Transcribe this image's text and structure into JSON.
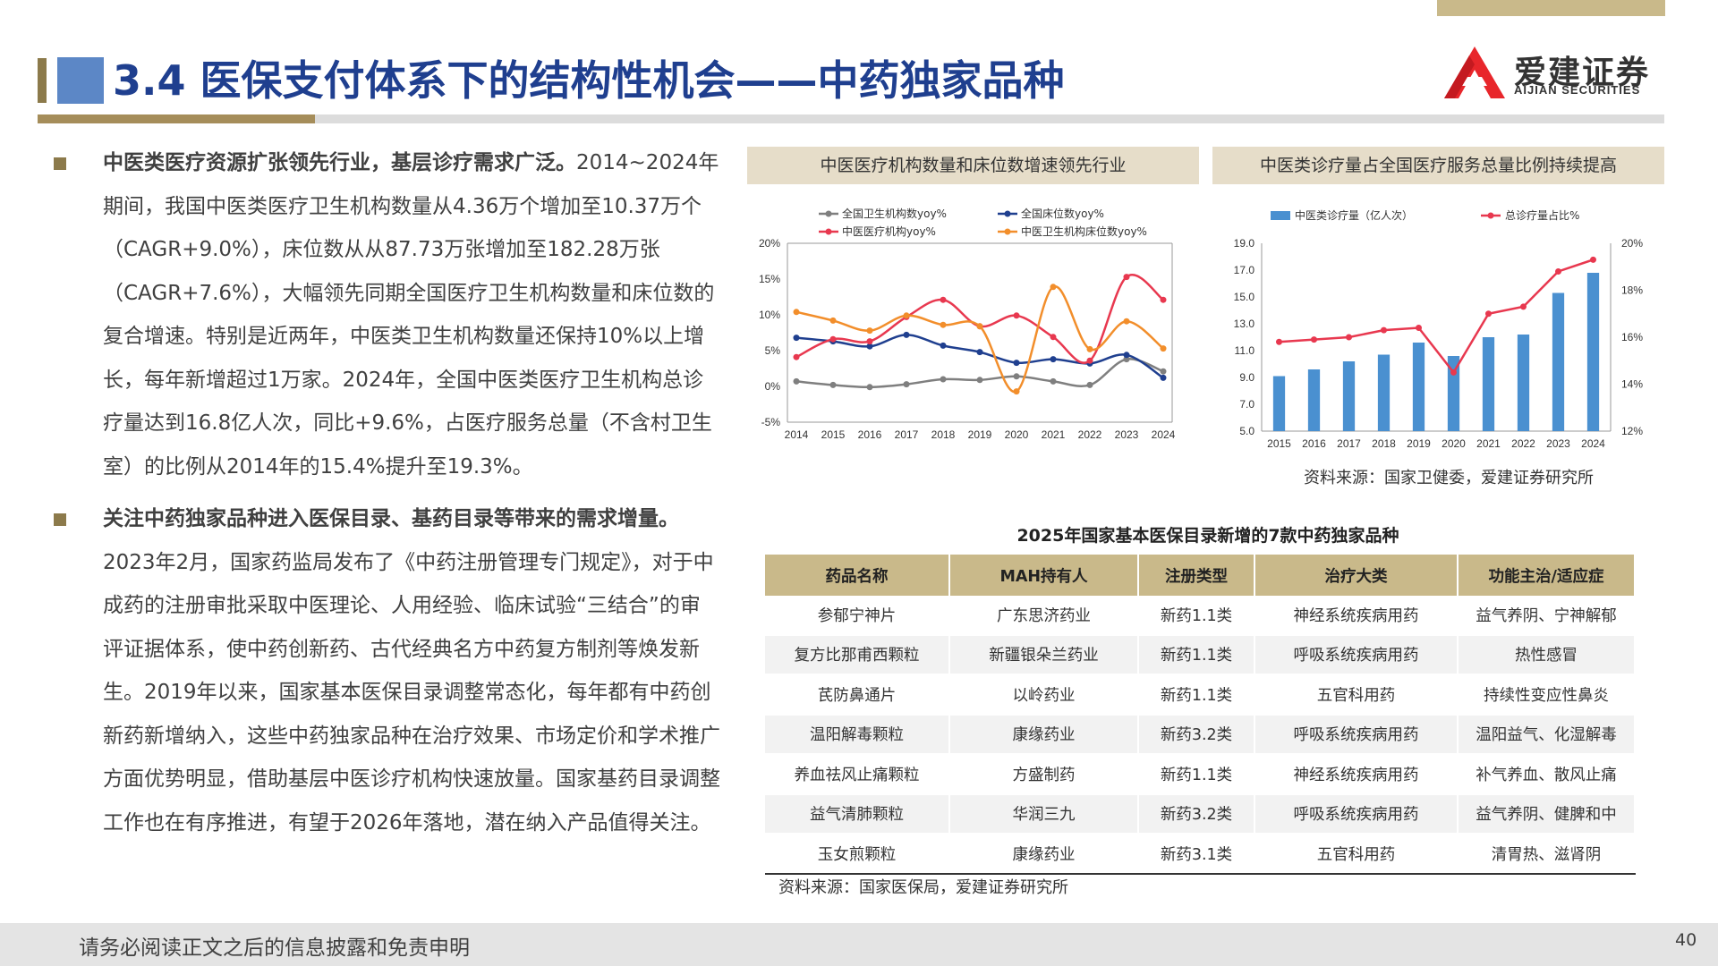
{
  "header": {
    "title": "3.4 医保支付体系下的结构性机会——中药独家品种",
    "logo_cn": "爱建证券",
    "logo_en": "AIJIAN SECURITIES"
  },
  "body": {
    "p1_bold": "中医类医疗资源扩张领先行业，基层诊疗需求广泛。",
    "p1_text": "2014~2024年期间，我国中医类医疗卫生机构数量从4.36万个增加至10.37万个（CAGR+9.0%），床位数从从87.73万张增加至182.28万张（CAGR+7.6%），大幅领先同期全国医疗卫生机构数量和床位数的复合增速。特别是近两年，中医类卫生机构数量还保持10%以上增长，每年新增超过1万家。2024年，全国中医类医疗卫生机构总诊疗量达到16.8亿人次，同比+9.6%，占医疗服务总量（不含村卫生室）的比例从2014年的15.4%提升至19.3%。",
    "p2_bold": "关注中药独家品种进入医保目录、基药目录等带来的需求增量。",
    "p2_text": "2023年2月，国家药监局发布了《中药注册管理专门规定》，对于中成药的注册审批采取中医理论、人用经验、临床试验“三结合”的审评证据体系，使中药创新药、古代经典名方中药复方制剂等焕发新生。2019年以来，国家基本医保目录调整常态化，每年都有中药创新药新增纳入，这些中药独家品种在治疗效果、市场定价和学术推广方面优势明显，借助基层中医诊疗机构快速放量。国家基药目录调整工作也在有序推进，有望于2026年落地，潜在纳入产品值得关注。"
  },
  "chart_data": [
    {
      "type": "line",
      "title": "中医医疗机构数量和床位数增速领先行业",
      "x": [
        "2014",
        "2015",
        "2016",
        "2017",
        "2018",
        "2019",
        "2020",
        "2021",
        "2022",
        "2023",
        "2024"
      ],
      "ylim": [
        -5,
        20
      ],
      "yticks": [
        "20%",
        "15%",
        "10%",
        "5%",
        "0%",
        "-5%"
      ],
      "series": [
        {
          "name": "全国卫生机构数yoy%",
          "color": "#7f7f7f",
          "values": [
            0.7,
            0.2,
            -0.1,
            0.3,
            1.0,
            0.9,
            1.4,
            0.7,
            0.2,
            3.8,
            2.1
          ]
        },
        {
          "name": "全国床位数yoy%",
          "color": "#1f3f8f",
          "values": [
            6.8,
            6.3,
            5.6,
            7.2,
            5.7,
            4.8,
            3.3,
            3.8,
            3.2,
            4.4,
            1.2
          ]
        },
        {
          "name": "中医医疗机构yoy%",
          "color": "#e8384f",
          "values": [
            4.1,
            6.6,
            6.3,
            9.7,
            12.1,
            8.4,
            9.9,
            6.9,
            3.6,
            15.3,
            12.1
          ]
        },
        {
          "name": "中医卫生机构床位数yoy%",
          "color": "#f28e2b",
          "values": [
            10.4,
            9.2,
            7.8,
            9.9,
            8.6,
            8.4,
            -0.7,
            13.9,
            5.2,
            9.1,
            5.3
          ]
        }
      ]
    },
    {
      "type": "bar",
      "title": "中医类诊疗量占全国医疗服务总量比例持续提高",
      "categories": [
        "2015",
        "2016",
        "2017",
        "2018",
        "2019",
        "2020",
        "2021",
        "2022",
        "2023",
        "2024"
      ],
      "ylim": [
        5,
        19
      ],
      "yticks": [
        "19.0",
        "17.0",
        "15.0",
        "13.0",
        "11.0",
        "9.0",
        "7.0",
        "5.0"
      ],
      "y2lim": [
        12,
        20
      ],
      "y2ticks": [
        "20%",
        "18%",
        "16%",
        "14%",
        "12%"
      ],
      "series": [
        {
          "name": "中医类诊疗量（亿人次）",
          "color": "#4a90d0",
          "kind": "bar",
          "values": [
            9.1,
            9.6,
            10.2,
            10.7,
            11.6,
            10.6,
            12.0,
            12.2,
            15.3,
            16.8
          ]
        },
        {
          "name": "总诊疗量占比%",
          "color": "#e8384f",
          "kind": "line",
          "values": [
            15.8,
            15.9,
            16.0,
            16.3,
            16.4,
            14.5,
            17.0,
            17.3,
            18.8,
            19.3
          ]
        }
      ]
    }
  ],
  "sources": {
    "charts": "资料来源：国家卫健委，爱建证券研究所",
    "table": "资料来源：国家医保局，爱建证券研究所"
  },
  "table": {
    "title": "2025年国家基本医保目录新增的7款中药独家品种",
    "headers": [
      "药品名称",
      "MAH持有人",
      "注册类型",
      "治疗大类",
      "功能主治/适应症"
    ],
    "rows": [
      [
        "参郁宁神片",
        "广东思济药业",
        "新药1.1类",
        "神经系统疾病用药",
        "益气养阴、宁神解郁"
      ],
      [
        "复方比那甫西颗粒",
        "新疆银朵兰药业",
        "新药1.1类",
        "呼吸系统疾病用药",
        "热性感冒"
      ],
      [
        "芪防鼻通片",
        "以岭药业",
        "新药1.1类",
        "五官科用药",
        "持续性变应性鼻炎"
      ],
      [
        "温阳解毒颗粒",
        "康缘药业",
        "新药3.2类",
        "呼吸系统疾病用药",
        "温阳益气、化湿解毒"
      ],
      [
        "养血祛风止痛颗粒",
        "方盛制药",
        "新药1.1类",
        "神经系统疾病用药",
        "补气养血、散风止痛"
      ],
      [
        "益气清肺颗粒",
        "华润三九",
        "新药3.2类",
        "呼吸系统疾病用药",
        "益气养阴、健脾和中"
      ],
      [
        "玉女煎颗粒",
        "康缘药业",
        "新药3.1类",
        "五官科用药",
        "清胃热、滋肾阴"
      ]
    ]
  },
  "footer": {
    "disclaimer": "请务必阅读正文之后的信息披露和免责申明",
    "page": "40"
  }
}
